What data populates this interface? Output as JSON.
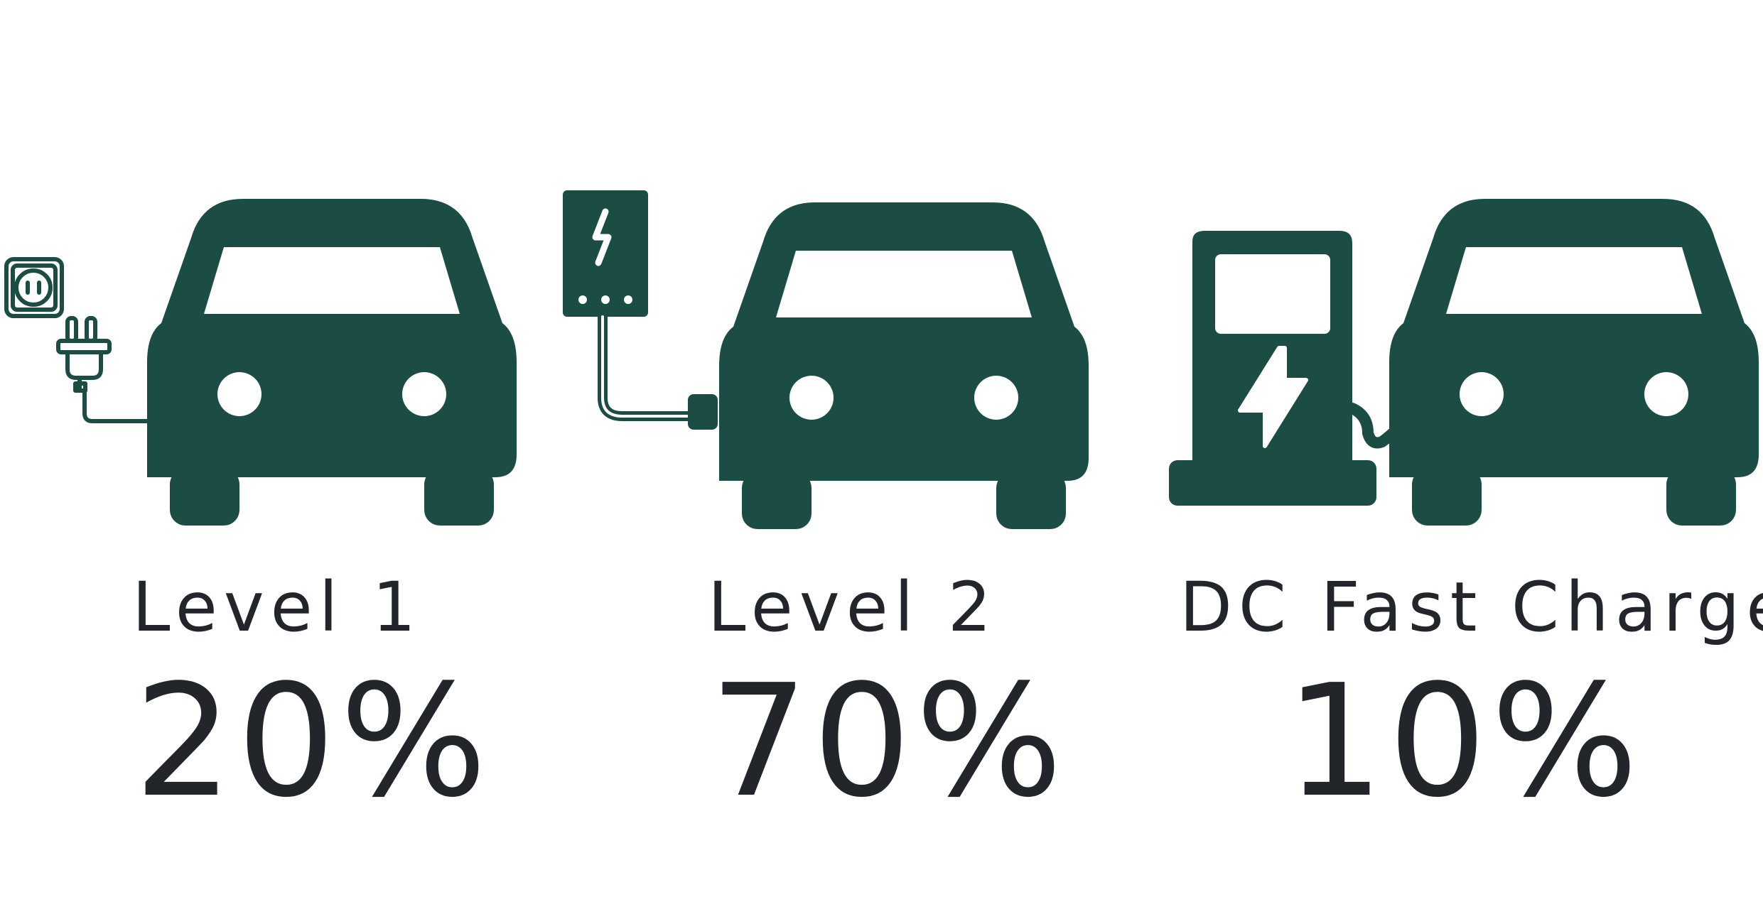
{
  "colors": {
    "primary": "#1c4d45",
    "text": "#22262a",
    "background": "#ffffff"
  },
  "columns": [
    {
      "label": "Level 1",
      "percent": "20%",
      "share": 0.2,
      "charger_icon": "wall-outlet-plug-icon",
      "vehicle_icon": "car-front-icon"
    },
    {
      "label": "Level 2",
      "percent": "70%",
      "share": 0.7,
      "charger_icon": "wall-mounted-ev-charger-icon",
      "vehicle_icon": "car-front-icon"
    },
    {
      "label": "DC Fast Charger",
      "percent": "10%",
      "share": 0.1,
      "charger_icon": "fast-charging-station-icon",
      "vehicle_icon": "car-front-icon"
    }
  ]
}
